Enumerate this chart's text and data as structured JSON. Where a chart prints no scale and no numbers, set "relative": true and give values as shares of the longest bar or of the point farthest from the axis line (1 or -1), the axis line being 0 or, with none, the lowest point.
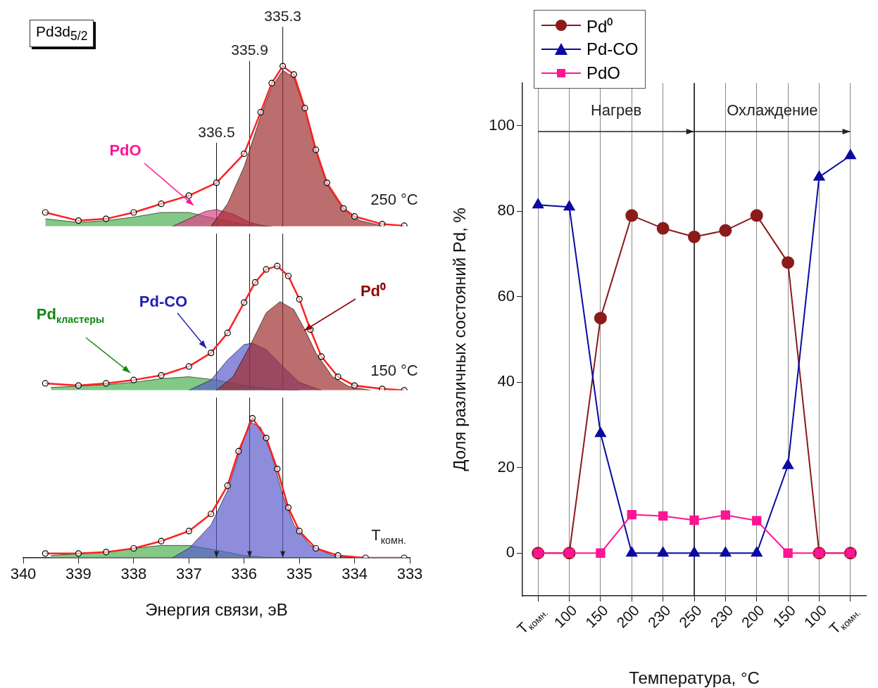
{
  "chart_data": [
    {
      "type": "line",
      "title": "Pd3d$_{5/2}$",
      "xlim": [
        340,
        333
      ],
      "xticks": [
        340,
        339,
        338,
        337,
        336,
        335,
        334,
        333
      ],
      "relative": true,
      "tick_labels": false,
      "ref_lines": [
        {
          "axis": "x",
          "value": 336.5,
          "label": "336.5"
        },
        {
          "axis": "x",
          "value": 335.9,
          "label": "335.9"
        },
        {
          "axis": "x",
          "value": 335.3,
          "label": "335.3"
        }
      ],
      "annotations": [
        "PdO",
        "250 °C"
      ],
      "series": [
        {
          "type": "area",
          "color": "#4caf50",
          "x": [
            339.6,
            339,
            338.5,
            338,
            337.5,
            337,
            336.5,
            336,
            335.5
          ],
          "values": [
            0.047,
            0.025,
            0.036,
            0.058,
            0.087,
            0.087,
            0.047,
            0.011,
            0
          ]
        },
        {
          "type": "area",
          "color": "#e0408a",
          "x": [
            337.3,
            337,
            336.7,
            336.5,
            336.2,
            335.9,
            335.6
          ],
          "values": [
            0,
            0.047,
            0.094,
            0.105,
            0.076,
            0.025,
            0
          ]
        },
        {
          "type": "area",
          "color": "#9e2b2b",
          "x": [
            336.6,
            336.3,
            336,
            335.7,
            335.5,
            335.3,
            335.1,
            334.9,
            334.7,
            334.5,
            334.2,
            333.9,
            333.5
          ],
          "values": [
            0,
            0.141,
            0.373,
            0.688,
            0.869,
            0.974,
            0.93,
            0.728,
            0.467,
            0.261,
            0.105,
            0.036,
            0.004
          ]
        },
        {
          "color": "#ff2020",
          "x": [
            339.6,
            339,
            338.5,
            338,
            337.5,
            337,
            336.5,
            336,
            335.7,
            335.5,
            335.3,
            335.1,
            334.9,
            334.7,
            334.5,
            334.2,
            334,
            333.5,
            333.1
          ],
          "values": [
            0.087,
            0.036,
            0.047,
            0.087,
            0.141,
            0.192,
            0.272,
            0.453,
            0.713,
            0.894,
            1.0,
            0.948,
            0.738,
            0.478,
            0.272,
            0.112,
            0.062,
            0.014,
            0.004
          ]
        },
        {
          "type": "scatter",
          "color": "#000000",
          "marker": "circle",
          "x": [
            339.6,
            339,
            338.5,
            338,
            337.5,
            337,
            336.5,
            336,
            335.7,
            335.5,
            335.3,
            335.1,
            334.9,
            334.7,
            334.5,
            334.2,
            334,
            333.5,
            333.1
          ],
          "values": [
            0.087,
            0.036,
            0.047,
            0.087,
            0.141,
            0.192,
            0.272,
            0.453,
            0.713,
            0.894,
            1.0,
            0.948,
            0.738,
            0.478,
            0.272,
            0.112,
            0.062,
            0.014,
            0.004
          ]
        }
      ]
    },
    {
      "type": "line",
      "xlim": [
        340,
        333
      ],
      "xticks": [
        340,
        339,
        338,
        337,
        336,
        335,
        334,
        333
      ],
      "relative": true,
      "tick_labels": false,
      "ref_lines": [
        {
          "axis": "x",
          "value": 336.5
        },
        {
          "axis": "x",
          "value": 335.9
        },
        {
          "axis": "x",
          "value": 335.3
        }
      ],
      "annotations": [
        "Pd-CO",
        "Pd⁰",
        "Pd$_{кластеры}$",
        "150 °C"
      ],
      "series": [
        {
          "type": "area",
          "color": "#4caf50",
          "x": [
            339.5,
            338.5,
            338,
            337.5,
            337,
            336.5,
            336,
            335.5,
            335
          ],
          "values": [
            0.023,
            0.045,
            0.064,
            0.094,
            0.109,
            0.083,
            0.038,
            0.011,
            0
          ]
        },
        {
          "type": "area",
          "color": "#5a5acb",
          "x": [
            337,
            336.6,
            336.3,
            336,
            335.85,
            335.6,
            335.3,
            335,
            334.6
          ],
          "values": [
            0,
            0.083,
            0.244,
            0.368,
            0.379,
            0.327,
            0.192,
            0.064,
            0
          ]
        },
        {
          "type": "area",
          "color": "#9e2b2b",
          "x": [
            336.5,
            336.2,
            335.9,
            335.6,
            335.35,
            335.1,
            334.9,
            334.7,
            334.4,
            334.1,
            333.7
          ],
          "values": [
            0,
            0.109,
            0.353,
            0.624,
            0.714,
            0.65,
            0.488,
            0.301,
            0.109,
            0.03,
            0
          ]
        },
        {
          "color": "#ff2020",
          "x": [
            339.6,
            339,
            338.5,
            338,
            337.5,
            337,
            336.6,
            336.3,
            336,
            335.8,
            335.6,
            335.4,
            335.2,
            335,
            334.8,
            334.6,
            334.3,
            334,
            333.5,
            333.1
          ],
          "values": [
            0.056,
            0.038,
            0.056,
            0.083,
            0.12,
            0.192,
            0.301,
            0.462,
            0.706,
            0.868,
            0.973,
            1.0,
            0.92,
            0.733,
            0.488,
            0.271,
            0.109,
            0.038,
            0.011,
            0
          ]
        },
        {
          "type": "scatter",
          "color": "#000000",
          "marker": "circle",
          "x": [
            339.6,
            339,
            338.5,
            338,
            337.5,
            337,
            336.6,
            336.3,
            336,
            335.8,
            335.6,
            335.4,
            335.2,
            335,
            334.8,
            334.6,
            334.3,
            334,
            333.5,
            333.1
          ],
          "values": [
            0.056,
            0.038,
            0.056,
            0.083,
            0.12,
            0.192,
            0.301,
            0.462,
            0.706,
            0.868,
            0.973,
            1.0,
            0.92,
            0.733,
            0.488,
            0.271,
            0.109,
            0.038,
            0.011,
            0
          ]
        }
      ]
    },
    {
      "type": "line",
      "xlabel": "Энергия связи, эВ",
      "xlim": [
        340,
        333
      ],
      "xticks": [
        340,
        339,
        338,
        337,
        336,
        335,
        334,
        333
      ],
      "relative": true,
      "tick_labels": "x",
      "ref_lines": [
        {
          "axis": "x",
          "value": 336.5
        },
        {
          "axis": "x",
          "value": 335.9
        },
        {
          "axis": "x",
          "value": 335.3
        }
      ],
      "annotations": [
        "T$_{комн.}$"
      ],
      "series": [
        {
          "type": "area",
          "color": "#4caf50",
          "x": [
            339.5,
            338.5,
            338,
            337.5,
            337,
            336.5,
            336,
            335.5
          ],
          "values": [
            0.017,
            0.041,
            0.068,
            0.089,
            0.089,
            0.055,
            0.017,
            0
          ]
        },
        {
          "type": "area",
          "color": "#5a5acb",
          "x": [
            337.3,
            337,
            336.6,
            336.3,
            336.1,
            335.9,
            335.7,
            335.5,
            335.3,
            335.1,
            334.8,
            334.4,
            334
          ],
          "values": [
            0,
            0.068,
            0.236,
            0.483,
            0.736,
            0.976,
            0.935,
            0.736,
            0.449,
            0.236,
            0.089,
            0.017,
            0
          ]
        },
        {
          "color": "#ff2020",
          "x": [
            339.6,
            339,
            338.5,
            338,
            337.5,
            337,
            336.6,
            336.3,
            336.1,
            335.85,
            335.6,
            335.4,
            335.2,
            335,
            334.7,
            334.3,
            333.8,
            333.1
          ],
          "values": [
            0.031,
            0.031,
            0.041,
            0.068,
            0.12,
            0.192,
            0.315,
            0.517,
            0.764,
            1.0,
            0.859,
            0.637,
            0.36,
            0.192,
            0.068,
            0.017,
            0,
            0
          ]
        },
        {
          "type": "scatter",
          "color": "#000000",
          "marker": "circle",
          "x": [
            339.6,
            339,
            338.5,
            338,
            337.5,
            337,
            336.6,
            336.3,
            336.1,
            335.85,
            335.6,
            335.4,
            335.2,
            335,
            334.7,
            334.3,
            333.8,
            333.1
          ],
          "values": [
            0.031,
            0.031,
            0.041,
            0.068,
            0.12,
            0.192,
            0.315,
            0.517,
            0.764,
            1.0,
            0.859,
            0.637,
            0.36,
            0.192,
            0.068,
            0.017,
            0,
            0
          ]
        }
      ]
    },
    {
      "type": "line",
      "xlabel": "Температура, °C",
      "ylabel": "Доля различных состояний Pd, %",
      "categories": [
        "T$_{комн.}$",
        "100",
        "150",
        "200",
        "230",
        "250",
        "230",
        "200",
        "150",
        "100",
        "T$_{комн.}$"
      ],
      "ylim": [
        -10,
        110
      ],
      "yticks": [
        0,
        20,
        40,
        60,
        80,
        100
      ],
      "grid": "x",
      "legend": "top left",
      "ref_lines": [
        {
          "axis": "x",
          "value": "250"
        }
      ],
      "annotations": [
        "Нагрев",
        "Охлаждение"
      ],
      "series": [
        {
          "name": "Pd⁰",
          "color": "#8b1a1a",
          "marker": "circle",
          "values": [
            0,
            0,
            55,
            79,
            76,
            74,
            75.5,
            79,
            68,
            0,
            0
          ]
        },
        {
          "name": "Pd-CO",
          "color": "#0a0aa0",
          "marker": "triangle",
          "values": [
            81.5,
            81,
            28,
            0,
            0,
            0,
            0,
            0,
            20.5,
            88,
            93
          ]
        },
        {
          "name": "PdO",
          "color": "#ff1493",
          "marker": "square",
          "values": [
            0,
            0,
            0,
            9,
            8.7,
            7.7,
            8.9,
            7.6,
            0,
            0,
            0
          ]
        }
      ]
    }
  ]
}
